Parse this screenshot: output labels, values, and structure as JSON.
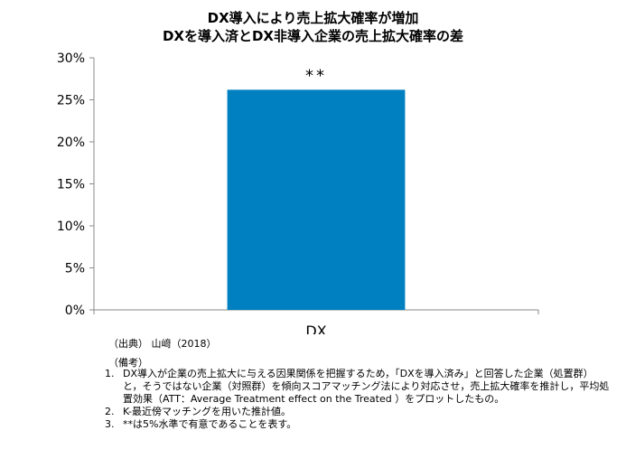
{
  "chart_data": {
    "type": "bar",
    "title": "DX導入により売上拡大確率が増加",
    "subtitle": "DXを導入済とDX非導入企業の売上拡大確率の差",
    "categories": [
      "DX"
    ],
    "values": [
      26.2
    ],
    "ylim": [
      0,
      30
    ],
    "yticks": [
      "0%",
      "5%",
      "10%",
      "15%",
      "20%",
      "25%",
      "30%"
    ],
    "ytick_values": [
      0,
      5,
      10,
      15,
      20,
      25,
      30
    ],
    "annotations": [
      "**"
    ],
    "bar_color": "#0080c0",
    "grid": false
  },
  "source": "（出典） 山﨑（2018）",
  "notes_heading": "（備考）",
  "notes": [
    {
      "num": "1.",
      "text": "DX導入が企業の売上拡大に与える因果関係を把握するため，「DXを導入済み」と回答した企業（処置群）と，そうではない企業（対照群）を傾向スコアマッチング法により対応させ，売上拡大確率を推計し，平均処置効果（ATT：Average Treatment effect on the Treated ）をプロットしたもの。"
    },
    {
      "num": "2.",
      "text": "K-最近傍マッチングを用いた推計値。"
    },
    {
      "num": "3.",
      "text": "**は5%水準で有意であることを表す。"
    }
  ]
}
